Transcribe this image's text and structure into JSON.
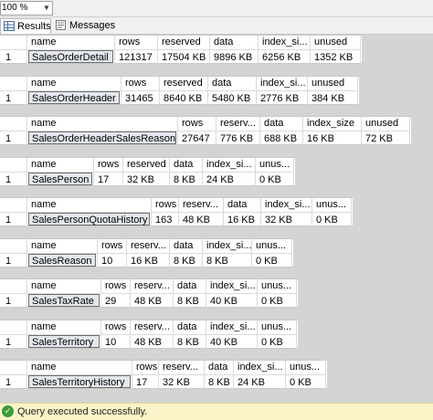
{
  "zoom": {
    "value": "100 %"
  },
  "tabs": [
    {
      "label": "Results"
    },
    {
      "label": "Messages"
    }
  ],
  "status": {
    "text": "Query executed successfully."
  },
  "results": [
    {
      "headers": [
        "name",
        "rows",
        "reserved",
        "data",
        "index_si...",
        "unused"
      ],
      "row_number": "1",
      "values": [
        "SalesOrderDetail",
        "121317",
        "17504 KB",
        "9896 KB",
        "6256 KB",
        "1352 KB"
      ]
    },
    {
      "headers": [
        "name",
        "rows",
        "reserved",
        "data",
        "index_si...",
        "unused"
      ],
      "row_number": "1",
      "values": [
        "SalesOrderHeader",
        "31465",
        "8640 KB",
        "5480 KB",
        "2776 KB",
        "384 KB"
      ]
    },
    {
      "headers": [
        "name",
        "rows",
        "reserv...",
        "data",
        "index_size",
        "unused"
      ],
      "row_number": "1",
      "values": [
        "SalesOrderHeaderSalesReason",
        "27647",
        "776 KB",
        "688 KB",
        "16 KB",
        "72 KB"
      ]
    },
    {
      "headers": [
        "name",
        "rows",
        "reserved",
        "data",
        "index_si...",
        "unus..."
      ],
      "row_number": "1",
      "values": [
        "SalesPerson",
        "17",
        "32 KB",
        "8 KB",
        "24 KB",
        "0 KB"
      ]
    },
    {
      "headers": [
        "name",
        "rows",
        "reserv...",
        "data",
        "index_si...",
        "unus..."
      ],
      "row_number": "1",
      "values": [
        "SalesPersonQuotaHistory",
        "163",
        "48 KB",
        "16 KB",
        "32 KB",
        "0 KB"
      ]
    },
    {
      "headers": [
        "name",
        "rows",
        "reserv...",
        "data",
        "index_si...",
        "unus..."
      ],
      "row_number": "1",
      "values": [
        "SalesReason",
        "10",
        "16 KB",
        "8 KB",
        "8 KB",
        "0 KB"
      ]
    },
    {
      "headers": [
        "name",
        "rows",
        "reserv...",
        "data",
        "index_si...",
        "unus..."
      ],
      "row_number": "1",
      "values": [
        "SalesTaxRate",
        "29",
        "48 KB",
        "8 KB",
        "40 KB",
        "0 KB"
      ]
    },
    {
      "headers": [
        "name",
        "rows",
        "reserv...",
        "data",
        "index_si...",
        "unus..."
      ],
      "row_number": "1",
      "values": [
        "SalesTerritory",
        "10",
        "48 KB",
        "8 KB",
        "40 KB",
        "0 KB"
      ]
    },
    {
      "headers": [
        "name",
        "rows",
        "reserv...",
        "data",
        "index_si...",
        "unus..."
      ],
      "row_number": "1",
      "values": [
        "SalesTerritoryHistory",
        "17",
        "32 KB",
        "8 KB",
        "24 KB",
        "0 KB"
      ]
    }
  ]
}
